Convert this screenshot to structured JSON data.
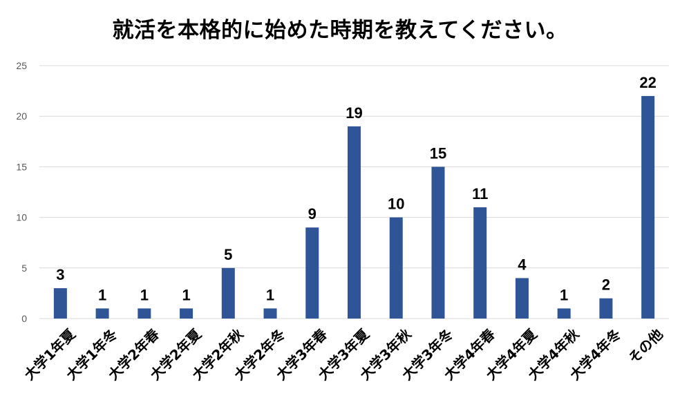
{
  "chart_data": {
    "type": "bar",
    "title": "就活を本格的に始めた時期を教えてください。",
    "categories": [
      "大学1年夏",
      "大学1年冬",
      "大学2年春",
      "大学2年夏",
      "大学2年秋",
      "大学2年冬",
      "大学3年春",
      "大学3年夏",
      "大学3年秋",
      "大学3年冬",
      "大学4年春",
      "大学4年夏",
      "大学4年秋",
      "大学4年冬",
      "その他"
    ],
    "values": [
      3,
      1,
      1,
      1,
      5,
      1,
      9,
      19,
      10,
      15,
      11,
      4,
      1,
      2,
      22
    ],
    "ylim": [
      0,
      25
    ],
    "yticks": [
      0,
      5,
      10,
      15,
      20,
      25
    ],
    "grid": true,
    "bar_color": "#2f5597",
    "grid_color": "#d9d9d9"
  }
}
